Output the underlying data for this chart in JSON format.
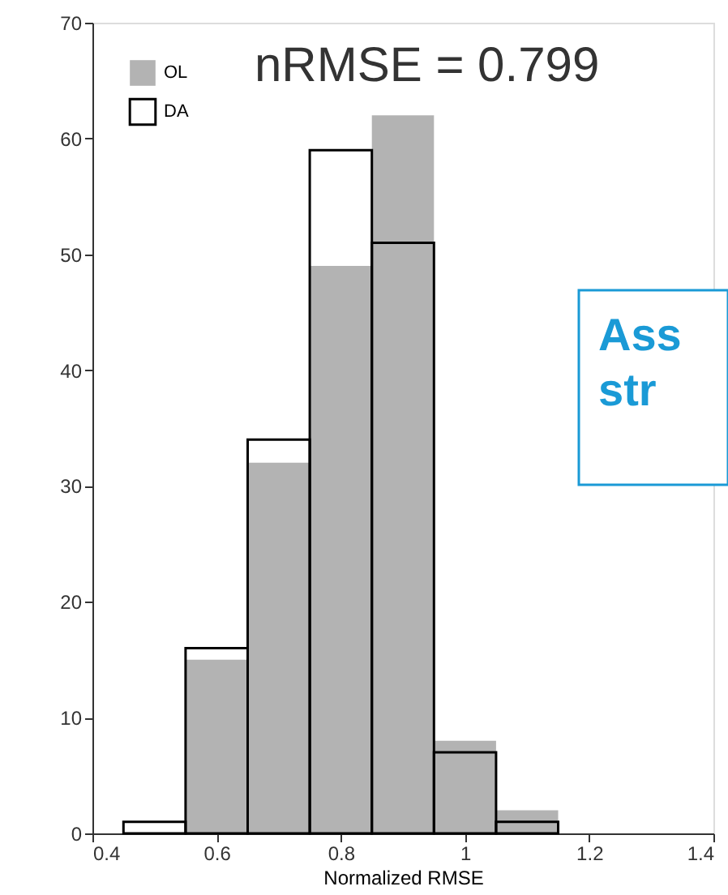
{
  "chart_data": {
    "type": "histogram",
    "bins": [
      0.45,
      0.55,
      0.65,
      0.75,
      0.85,
      0.95,
      1.05,
      1.15
    ],
    "series": [
      {
        "name": "OL",
        "color": "#b3b3b3",
        "values": [
          0,
          15,
          32,
          49,
          62,
          8,
          2
        ]
      },
      {
        "name": "DA",
        "color": "#000000",
        "values": [
          1,
          16,
          34,
          59,
          51,
          7,
          1
        ]
      }
    ],
    "xlabel": "Normalized RMSE",
    "xlim": [
      0.4,
      1.4
    ],
    "xticks": [
      0.4,
      0.6,
      0.8,
      1,
      1.2,
      1.4
    ],
    "ylim": [
      0,
      70
    ],
    "yticks": [
      0,
      10,
      20,
      30,
      40,
      50,
      60,
      70
    ],
    "annotations": [
      "nRMSE = 0.799",
      "Ass\nstr"
    ],
    "legend": "top left",
    "grid": false
  }
}
